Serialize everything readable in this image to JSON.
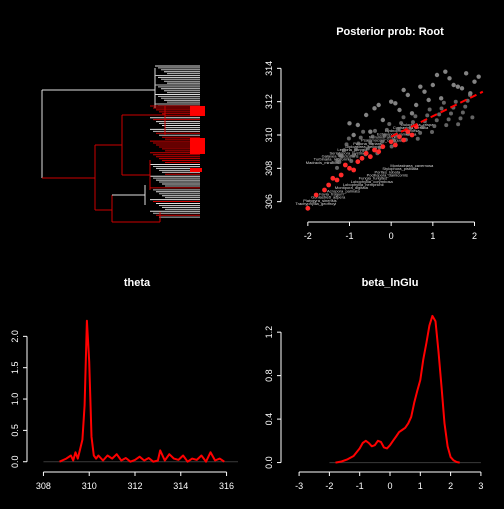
{
  "colors": {
    "background": "#000000",
    "axis": "#ffffff",
    "accent": "#ff0000",
    "darkred": "#cc0000",
    "points": "#b0b0b0",
    "tree_grey": "#bdbdbd"
  },
  "chart_data": [
    {
      "panel": "tree",
      "type": "other",
      "title": ""
    },
    {
      "panel": "scatter",
      "type": "scatter",
      "title": "Posterior prob: Root",
      "xlim": [
        -2.5,
        2.3
      ],
      "ylim": [
        305.2,
        314.8
      ],
      "xticks": [
        "-2",
        "-1",
        "0",
        "1",
        "2"
      ],
      "yticks": [
        "306",
        "308",
        "310",
        "312",
        "314"
      ],
      "regression": {
        "style": "dashed",
        "color": "#ff0000",
        "x": [
          0.0,
          2.2
        ],
        "y": [
          309.9,
          312.6
        ]
      },
      "series": [
        {
          "color": "grey",
          "x": [
            -0.8,
            -0.6,
            -0.4,
            -0.2,
            0.0,
            0.2,
            0.4,
            0.6,
            0.8,
            1.0,
            1.2,
            1.4,
            1.6,
            1.8,
            2.0,
            -0.5,
            0.1,
            0.7,
            1.3,
            1.9,
            -0.9,
            -0.3,
            0.3,
            0.9,
            1.5,
            2.1,
            -1.0,
            0.5,
            1.1,
            1.7
          ],
          "y": [
            310.6,
            311.2,
            311.6,
            310.9,
            312.0,
            311.5,
            312.4,
            311.8,
            312.6,
            313.0,
            312.2,
            313.4,
            312.9,
            313.7,
            313.2,
            310.2,
            311.9,
            312.9,
            313.8,
            312.5,
            310.0,
            311.8,
            312.7,
            312.1,
            313.0,
            313.5,
            310.7,
            311.3,
            313.6,
            312.8
          ]
        },
        {
          "color": "red",
          "x": [
            -2.0,
            -1.8,
            -1.5,
            -1.2,
            -1.0,
            -0.8,
            -0.6,
            -0.4,
            -0.2,
            0.0,
            0.2,
            0.4,
            0.6,
            -1.4,
            -1.1,
            -0.7,
            -0.3,
            0.1,
            0.5,
            -1.6,
            -0.9,
            -0.5,
            0.3,
            -1.3
          ],
          "y": [
            305.6,
            306.4,
            307.0,
            307.6,
            308.0,
            308.4,
            308.9,
            309.1,
            309.3,
            309.6,
            309.9,
            310.2,
            310.5,
            307.4,
            308.2,
            308.6,
            309.0,
            309.4,
            310.0,
            306.7,
            307.9,
            308.7,
            309.7,
            307.3
          ]
        }
      ]
    },
    {
      "panel": "theta",
      "type": "line",
      "title": "theta",
      "xlim": [
        307.5,
        316.5
      ],
      "ylim": [
        -0.1,
        2.5
      ],
      "xticks": [
        "308",
        "310",
        "312",
        "314",
        "316"
      ],
      "yticks": [
        "0.0",
        "0.5",
        "1.0",
        "1.5",
        "2.0"
      ],
      "series": [
        {
          "color": "#ff0000",
          "x": [
            308.7,
            309.0,
            309.2,
            309.3,
            309.4,
            309.5,
            309.6,
            309.7,
            309.8,
            309.9,
            310.0,
            310.1,
            310.2,
            310.3,
            310.4,
            310.6,
            310.8,
            311.0,
            311.2,
            311.4,
            311.6,
            311.8,
            312.0,
            312.2,
            312.4,
            312.6,
            312.8,
            313.0,
            313.1,
            313.3,
            313.5,
            313.7,
            313.9,
            314.1,
            314.3,
            314.5,
            314.7,
            314.9,
            315.1,
            315.3,
            315.5,
            315.7,
            315.9
          ],
          "y": [
            0.0,
            0.05,
            0.1,
            0.02,
            0.15,
            0.05,
            0.2,
            0.35,
            0.9,
            2.25,
            1.6,
            0.4,
            0.1,
            0.05,
            0.1,
            0.02,
            0.1,
            0.05,
            0.12,
            0.02,
            0.06,
            0.0,
            0.03,
            0.08,
            0.02,
            0.06,
            0.0,
            0.02,
            0.18,
            0.02,
            0.12,
            0.05,
            0.03,
            0.1,
            0.0,
            0.05,
            0.03,
            0.1,
            0.0,
            0.15,
            0.02,
            0.05,
            0.0
          ]
        }
      ]
    },
    {
      "panel": "beta",
      "type": "line",
      "title": "beta_lnGlu",
      "xlim": [
        -3.3,
        3.3
      ],
      "ylim": [
        -0.05,
        1.45
      ],
      "xticks": [
        "-3",
        "-2",
        "-1",
        "0",
        "1",
        "2",
        "3"
      ],
      "yticks": [
        "0.0",
        "0.4",
        "0.8",
        "1.2"
      ],
      "series": [
        {
          "color": "#ff0000",
          "x": [
            -1.8,
            -1.6,
            -1.4,
            -1.2,
            -1.0,
            -0.9,
            -0.8,
            -0.7,
            -0.6,
            -0.5,
            -0.4,
            -0.3,
            -0.2,
            -0.1,
            0.0,
            0.1,
            0.2,
            0.3,
            0.4,
            0.5,
            0.6,
            0.7,
            0.8,
            0.9,
            1.0,
            1.1,
            1.2,
            1.3,
            1.4,
            1.5,
            1.6,
            1.7,
            1.8,
            1.9,
            2.0,
            2.1,
            2.2,
            2.3
          ],
          "y": [
            0.0,
            0.01,
            0.03,
            0.06,
            0.13,
            0.18,
            0.2,
            0.18,
            0.15,
            0.16,
            0.2,
            0.19,
            0.14,
            0.13,
            0.16,
            0.2,
            0.24,
            0.28,
            0.3,
            0.32,
            0.36,
            0.42,
            0.55,
            0.66,
            0.76,
            0.95,
            1.1,
            1.26,
            1.35,
            1.3,
            1.02,
            0.7,
            0.36,
            0.15,
            0.05,
            0.02,
            0.005,
            0.0
          ]
        }
      ]
    }
  ],
  "tree_labels": [
    "Trachyphyllia_geoffroyi",
    "Platygyra_sinensis",
    "Goniastrea_aspera",
    "Favia_fragum",
    "Acropora_palmata",
    "Montipora_digitata",
    "Lobophyllia_hemprichii",
    "Lobophyllia_corymbosa",
    "Fungia_fungites",
    "Pocillopora_damicornis",
    "Porites_lobata",
    "Stylophora_pistillata",
    "Montastraea_cavernosa",
    "Madracis_mirabilis",
    "Turbinaria_reniformis",
    "Galaxea_fascicularis",
    "Seriatopora_hystrix",
    "Leptoria_phrygia",
    "Diploastrea_heliopora",
    "Pavona_varians",
    "Psammocora_contigua",
    "Merulina_ampliata",
    "Echinopora_lamellosa",
    "Hydnophora_exesa",
    "Cyphastrea_serailia",
    "Oulophyllia_crispa"
  ]
}
